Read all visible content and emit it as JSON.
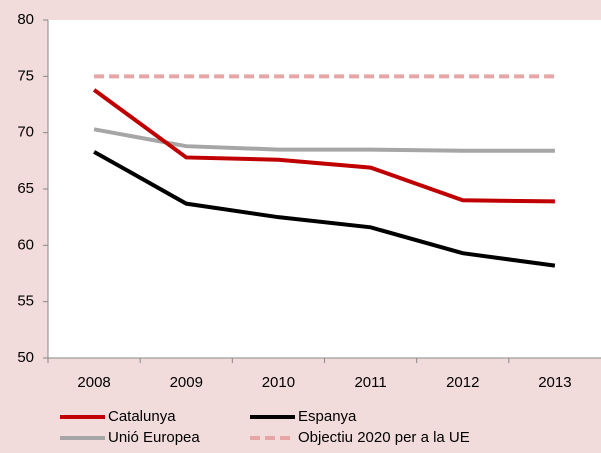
{
  "chart_data": {
    "type": "line",
    "categories": [
      "2008",
      "2009",
      "2010",
      "2011",
      "2012",
      "2013"
    ],
    "series": [
      {
        "name": "Catalunya",
        "color": "#c00000",
        "dash": false,
        "values": [
          73.8,
          67.8,
          67.6,
          66.9,
          64.0,
          63.9
        ]
      },
      {
        "name": "Espanya",
        "color": "#000000",
        "dash": false,
        "values": [
          68.3,
          63.7,
          62.5,
          61.6,
          59.3,
          58.2
        ]
      },
      {
        "name": "Unió Europea",
        "color": "#a6a6a6",
        "dash": false,
        "values": [
          70.3,
          68.8,
          68.5,
          68.5,
          68.4,
          68.4
        ]
      },
      {
        "name": "Objectiu 2020 per a la UE",
        "color": "#e6a6a6",
        "dash": true,
        "values": [
          75,
          75,
          75,
          75,
          75,
          75
        ]
      }
    ],
    "ylim": [
      50,
      80
    ],
    "yticks": [
      50,
      55,
      60,
      65,
      70,
      75,
      80
    ],
    "grid": false
  }
}
